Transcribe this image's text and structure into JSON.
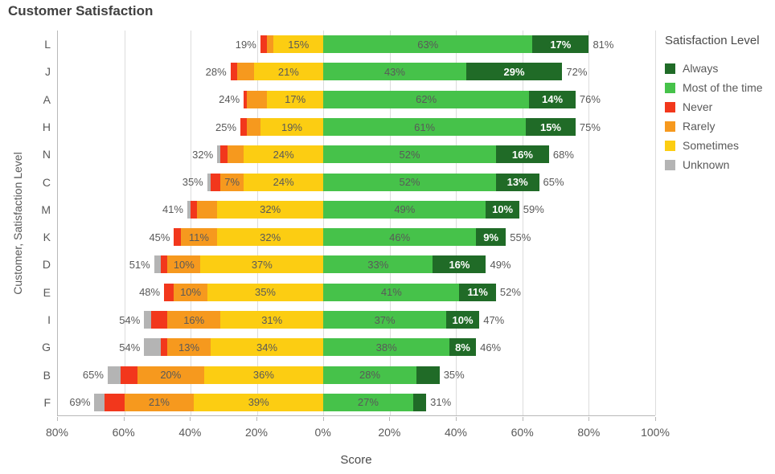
{
  "chart_data": {
    "type": "diverging-stacked-bar",
    "title": "Customer Satisfaction",
    "xlabel": "Score",
    "ylabel": "Customer, Satisfaction Level",
    "x_range": [
      -80,
      100
    ],
    "x_ticks": [
      {
        "value": -80,
        "label": "80%"
      },
      {
        "value": -60,
        "label": "60%"
      },
      {
        "value": -40,
        "label": "40%"
      },
      {
        "value": -20,
        "label": "20%"
      },
      {
        "value": 0,
        "label": "0%"
      },
      {
        "value": 20,
        "label": "20%"
      },
      {
        "value": 40,
        "label": "40%"
      },
      {
        "value": 60,
        "label": "60%"
      },
      {
        "value": 80,
        "label": "80%"
      },
      {
        "value": 100,
        "label": "100%"
      }
    ],
    "grid": true,
    "legend": {
      "title": "Satisfaction Level",
      "position": "right",
      "items": [
        {
          "label": "Always",
          "color": "#206b27"
        },
        {
          "label": "Most of the time",
          "color": "#46c24a"
        },
        {
          "label": "Never",
          "color": "#f2371c"
        },
        {
          "label": "Rarely",
          "color": "#f6991e"
        },
        {
          "label": "Sometimes",
          "color": "#fccd12"
        },
        {
          "label": "Unknown",
          "color": "#b4b4b4"
        }
      ]
    },
    "stack_order_left_to_right": [
      "Unknown",
      "Never",
      "Rarely",
      "Sometimes",
      "Most of the time",
      "Always"
    ],
    "colors": {
      "Unknown": "#b4b4b4",
      "Never": "#f2371c",
      "Rarely": "#f6991e",
      "Sometimes": "#fccd12",
      "Most of the time": "#46c24a",
      "Always": "#206b27"
    },
    "categories": [
      "L",
      "J",
      "A",
      "H",
      "N",
      "C",
      "M",
      "K",
      "D",
      "E",
      "I",
      "G",
      "B",
      "F"
    ],
    "rows": [
      {
        "category": "L",
        "left_total": "19%",
        "right_total": "81%",
        "segments": [
          {
            "level": "Unknown",
            "value": 0,
            "label": ""
          },
          {
            "level": "Never",
            "value": 2,
            "label": ""
          },
          {
            "level": "Rarely",
            "value": 2,
            "label": ""
          },
          {
            "level": "Sometimes",
            "value": 15,
            "label": "15%"
          },
          {
            "level": "Most of the time",
            "value": 63,
            "label": "63%"
          },
          {
            "level": "Always",
            "value": 17,
            "label": "17%"
          }
        ]
      },
      {
        "category": "J",
        "left_total": "28%",
        "right_total": "72%",
        "segments": [
          {
            "level": "Unknown",
            "value": 0,
            "label": ""
          },
          {
            "level": "Never",
            "value": 2,
            "label": ""
          },
          {
            "level": "Rarely",
            "value": 5,
            "label": ""
          },
          {
            "level": "Sometimes",
            "value": 21,
            "label": "21%"
          },
          {
            "level": "Most of the time",
            "value": 43,
            "label": "43%"
          },
          {
            "level": "Always",
            "value": 29,
            "label": "29%"
          }
        ]
      },
      {
        "category": "A",
        "left_total": "24%",
        "right_total": "76%",
        "segments": [
          {
            "level": "Unknown",
            "value": 0,
            "label": ""
          },
          {
            "level": "Never",
            "value": 1,
            "label": ""
          },
          {
            "level": "Rarely",
            "value": 6,
            "label": ""
          },
          {
            "level": "Sometimes",
            "value": 17,
            "label": "17%"
          },
          {
            "level": "Most of the time",
            "value": 62,
            "label": "62%"
          },
          {
            "level": "Always",
            "value": 14,
            "label": "14%"
          }
        ]
      },
      {
        "category": "H",
        "left_total": "25%",
        "right_total": "75%",
        "segments": [
          {
            "level": "Unknown",
            "value": 0,
            "label": ""
          },
          {
            "level": "Never",
            "value": 2,
            "label": ""
          },
          {
            "level": "Rarely",
            "value": 4,
            "label": ""
          },
          {
            "level": "Sometimes",
            "value": 19,
            "label": "19%"
          },
          {
            "level": "Most of the time",
            "value": 61,
            "label": "61%"
          },
          {
            "level": "Always",
            "value": 15,
            "label": "15%"
          }
        ]
      },
      {
        "category": "N",
        "left_total": "32%",
        "right_total": "68%",
        "segments": [
          {
            "level": "Unknown",
            "value": 1,
            "label": ""
          },
          {
            "level": "Never",
            "value": 2,
            "label": ""
          },
          {
            "level": "Rarely",
            "value": 5,
            "label": ""
          },
          {
            "level": "Sometimes",
            "value": 24,
            "label": "24%"
          },
          {
            "level": "Most of the time",
            "value": 52,
            "label": "52%"
          },
          {
            "level": "Always",
            "value": 16,
            "label": "16%"
          }
        ]
      },
      {
        "category": "C",
        "left_total": "35%",
        "right_total": "65%",
        "segments": [
          {
            "level": "Unknown",
            "value": 1,
            "label": ""
          },
          {
            "level": "Never",
            "value": 3,
            "label": ""
          },
          {
            "level": "Rarely",
            "value": 7,
            "label": "7%"
          },
          {
            "level": "Sometimes",
            "value": 24,
            "label": "24%"
          },
          {
            "level": "Most of the time",
            "value": 52,
            "label": "52%"
          },
          {
            "level": "Always",
            "value": 13,
            "label": "13%"
          }
        ]
      },
      {
        "category": "M",
        "left_total": "41%",
        "right_total": "59%",
        "segments": [
          {
            "level": "Unknown",
            "value": 1,
            "label": ""
          },
          {
            "level": "Never",
            "value": 2,
            "label": ""
          },
          {
            "level": "Rarely",
            "value": 6,
            "label": ""
          },
          {
            "level": "Sometimes",
            "value": 32,
            "label": "32%"
          },
          {
            "level": "Most of the time",
            "value": 49,
            "label": "49%"
          },
          {
            "level": "Always",
            "value": 10,
            "label": "10%"
          }
        ]
      },
      {
        "category": "K",
        "left_total": "45%",
        "right_total": "55%",
        "segments": [
          {
            "level": "Unknown",
            "value": 0,
            "label": ""
          },
          {
            "level": "Never",
            "value": 2,
            "label": ""
          },
          {
            "level": "Rarely",
            "value": 11,
            "label": "11%"
          },
          {
            "level": "Sometimes",
            "value": 32,
            "label": "32%"
          },
          {
            "level": "Most of the time",
            "value": 46,
            "label": "46%"
          },
          {
            "level": "Always",
            "value": 9,
            "label": "9%"
          }
        ]
      },
      {
        "category": "D",
        "left_total": "51%",
        "right_total": "49%",
        "segments": [
          {
            "level": "Unknown",
            "value": 2,
            "label": ""
          },
          {
            "level": "Never",
            "value": 2,
            "label": ""
          },
          {
            "level": "Rarely",
            "value": 10,
            "label": "10%"
          },
          {
            "level": "Sometimes",
            "value": 37,
            "label": "37%"
          },
          {
            "level": "Most of the time",
            "value": 33,
            "label": "33%"
          },
          {
            "level": "Always",
            "value": 16,
            "label": "16%"
          }
        ]
      },
      {
        "category": "E",
        "left_total": "48%",
        "right_total": "52%",
        "segments": [
          {
            "level": "Unknown",
            "value": 0,
            "label": ""
          },
          {
            "level": "Never",
            "value": 3,
            "label": ""
          },
          {
            "level": "Rarely",
            "value": 10,
            "label": "10%"
          },
          {
            "level": "Sometimes",
            "value": 35,
            "label": "35%"
          },
          {
            "level": "Most of the time",
            "value": 41,
            "label": "41%"
          },
          {
            "level": "Always",
            "value": 11,
            "label": "11%"
          }
        ]
      },
      {
        "category": "I",
        "left_total": "54%",
        "right_total": "47%",
        "segments": [
          {
            "level": "Unknown",
            "value": 2,
            "label": ""
          },
          {
            "level": "Never",
            "value": 5,
            "label": ""
          },
          {
            "level": "Rarely",
            "value": 16,
            "label": "16%"
          },
          {
            "level": "Sometimes",
            "value": 31,
            "label": "31%"
          },
          {
            "level": "Most of the time",
            "value": 37,
            "label": "37%"
          },
          {
            "level": "Always",
            "value": 10,
            "label": "10%"
          }
        ]
      },
      {
        "category": "G",
        "left_total": "54%",
        "right_total": "46%",
        "segments": [
          {
            "level": "Unknown",
            "value": 5,
            "label": ""
          },
          {
            "level": "Never",
            "value": 2,
            "label": ""
          },
          {
            "level": "Rarely",
            "value": 13,
            "label": "13%"
          },
          {
            "level": "Sometimes",
            "value": 34,
            "label": "34%"
          },
          {
            "level": "Most of the time",
            "value": 38,
            "label": "38%"
          },
          {
            "level": "Always",
            "value": 8,
            "label": "8%"
          }
        ]
      },
      {
        "category": "B",
        "left_total": "65%",
        "right_total": "35%",
        "segments": [
          {
            "level": "Unknown",
            "value": 4,
            "label": ""
          },
          {
            "level": "Never",
            "value": 5,
            "label": ""
          },
          {
            "level": "Rarely",
            "value": 20,
            "label": "20%"
          },
          {
            "level": "Sometimes",
            "value": 36,
            "label": "36%"
          },
          {
            "level": "Most of the time",
            "value": 28,
            "label": "28%"
          },
          {
            "level": "Always",
            "value": 7,
            "label": ""
          }
        ]
      },
      {
        "category": "F",
        "left_total": "69%",
        "right_total": "31%",
        "segments": [
          {
            "level": "Unknown",
            "value": 3,
            "label": ""
          },
          {
            "level": "Never",
            "value": 6,
            "label": ""
          },
          {
            "level": "Rarely",
            "value": 21,
            "label": "21%"
          },
          {
            "level": "Sometimes",
            "value": 39,
            "label": "39%"
          },
          {
            "level": "Most of the time",
            "value": 27,
            "label": "27%"
          },
          {
            "level": "Always",
            "value": 4,
            "label": ""
          }
        ]
      }
    ]
  }
}
